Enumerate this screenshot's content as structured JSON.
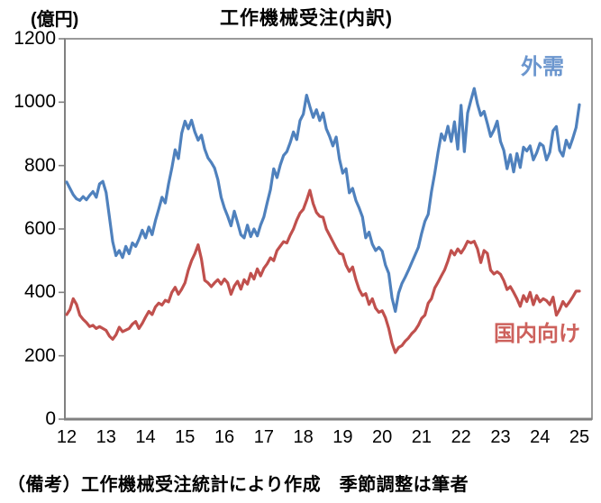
{
  "title": "工作機械受注(内訳)",
  "unit_label": "(億円)",
  "footnote": "（備考）工作機械受注統計により作成　季節調整は筆者",
  "legend": {
    "gaiju": "外需",
    "kokunai": "国内向け"
  },
  "colors": {
    "gaiju_line": "#4F81BD",
    "kokunai_line": "#C0504D",
    "gaiju_label": "#6B96CE",
    "kokunai_label": "#CD615C",
    "axis": "#808080",
    "text": "#000000"
  },
  "chart_data": {
    "type": "line",
    "x_unit": "year (monthly points, seasonally adjusted)",
    "x_start": 2012.0,
    "x_step_months": 1,
    "x_tick_labels": [
      "12",
      "13",
      "14",
      "15",
      "16",
      "17",
      "18",
      "19",
      "20",
      "21",
      "22",
      "23",
      "24",
      "25"
    ],
    "y_tick_labels": [
      "1200",
      "1000",
      "800",
      "600",
      "400",
      "200",
      "0"
    ],
    "ylim": [
      0,
      1200
    ],
    "y_tick_step": 200,
    "grid": false,
    "legend_position": "inline-annotations",
    "series": [
      {
        "name": "外需",
        "values": [
          748,
          728,
          708,
          695,
          690,
          702,
          692,
          706,
          718,
          700,
          742,
          750,
          715,
          638,
          560,
          516,
          532,
          510,
          545,
          522,
          556,
          545,
          568,
          596,
          572,
          606,
          582,
          626,
          662,
          700,
          682,
          742,
          792,
          850,
          822,
          902,
          940,
          916,
          943,
          906,
          880,
          896,
          852,
          824,
          810,
          792,
          756,
          700,
          666,
          640,
          610,
          656,
          620,
          582,
          572,
          612,
          576,
          600,
          578,
          612,
          638,
          682,
          724,
          790,
          762,
          802,
          832,
          844,
          872,
          906,
          882,
          942,
          962,
          1022,
          986,
          952,
          976,
          942,
          966,
          916,
          892,
          862,
          890,
          820,
          776,
          790,
          714,
          728,
          690,
          666,
          638,
          572,
          590,
          552,
          532,
          542,
          530,
          486,
          460,
          382,
          340,
          398,
          428,
          448,
          470,
          494,
          518,
          542,
          586,
          624,
          646,
          718,
          776,
          842,
          900,
          880,
          924,
          876,
          938,
          852,
          990,
          844,
          966,
          1006,
          1043,
          994,
          958,
          971,
          933,
          892,
          912,
          940,
          876,
          848,
          790,
          834,
          780,
          838,
          794,
          858,
          846,
          862,
          818,
          840,
          870,
          862,
          818,
          842,
          910,
          923,
          848,
          830,
          880,
          856,
          886,
          920,
          992
        ]
      },
      {
        "name": "国内向け",
        "values": [
          330,
          346,
          380,
          362,
          328,
          315,
          305,
          292,
          296,
          286,
          292,
          286,
          280,
          262,
          252,
          266,
          290,
          276,
          281,
          286,
          300,
          308,
          286,
          302,
          322,
          340,
          330,
          354,
          366,
          360,
          375,
          370,
          400,
          416,
          394,
          410,
          430,
          470,
          500,
          522,
          550,
          505,
          438,
          430,
          418,
          430,
          440,
          426,
          442,
          430,
          394,
          420,
          435,
          410,
          440,
          426,
          460,
          442,
          474,
          452,
          476,
          490,
          509,
          500,
          532,
          546,
          560,
          556,
          580,
          600,
          628,
          650,
          662,
          690,
          722,
          680,
          652,
          640,
          637,
          600,
          580,
          560,
          540,
          523,
          520,
          486,
          466,
          480,
          440,
          409,
          390,
          396,
          362,
          380,
          350,
          337,
          342,
          320,
          286,
          240,
          210,
          226,
          232,
          246,
          256,
          270,
          280,
          296,
          318,
          328,
          366,
          380,
          414,
          432,
          452,
          471,
          499,
          532,
          518,
          537,
          524,
          540,
          561,
          556,
          561,
          537,
          494,
          532,
          523,
          470,
          458,
          465,
          457,
          437,
          409,
          418,
          400,
          380,
          356,
          390,
          371,
          400,
          361,
          390,
          370,
          380,
          374,
          361,
          385,
          328,
          346,
          371,
          356,
          370,
          386,
          404,
          404
        ]
      }
    ]
  }
}
